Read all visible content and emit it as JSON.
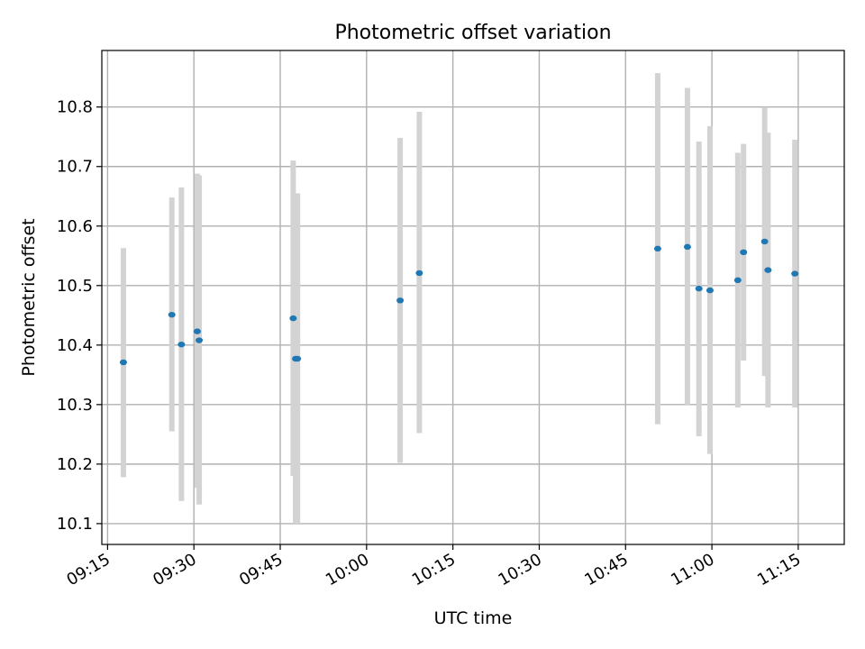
{
  "chart_data": {
    "type": "scatter",
    "title": "Photometric offset variation",
    "xlabel": "UTC time",
    "ylabel": "Photometric offset",
    "x_axis": {
      "type": "time",
      "domain": [
        "09:14",
        "11:23"
      ],
      "ticks": [
        "09:15",
        "09:30",
        "09:45",
        "10:00",
        "10:15",
        "10:30",
        "10:45",
        "11:00",
        "11:15"
      ]
    },
    "y_axis": {
      "range": [
        10.065,
        10.895
      ],
      "ticks": [
        "10.1",
        "10.2",
        "10.3",
        "10.4",
        "10.5",
        "10.6",
        "10.7",
        "10.8"
      ]
    },
    "grid": true,
    "colors": {
      "marker": "#1f77b4",
      "errorbar": "#d3d3d3",
      "grid": "#b0b0b0"
    },
    "points": [
      {
        "x": "09:17:45",
        "y": 10.371,
        "err_low": 10.178,
        "err_high": 10.563
      },
      {
        "x": "09:26:10",
        "y": 10.451,
        "err_low": 10.255,
        "err_high": 10.648
      },
      {
        "x": "09:27:50",
        "y": 10.401,
        "err_low": 10.138,
        "err_high": 10.665
      },
      {
        "x": "09:30:35",
        "y": 10.423,
        "err_low": 10.16,
        "err_high": 10.688
      },
      {
        "x": "09:30:55",
        "y": 10.408,
        "err_low": 10.132,
        "err_high": 10.685
      },
      {
        "x": "09:47:15",
        "y": 10.445,
        "err_low": 10.18,
        "err_high": 10.71
      },
      {
        "x": "09:47:40",
        "y": 10.377,
        "err_low": 10.1,
        "err_high": 10.655
      },
      {
        "x": "09:48:00",
        "y": 10.377,
        "err_low": 10.1,
        "err_high": 10.655
      },
      {
        "x": "10:05:50",
        "y": 10.475,
        "err_low": 10.202,
        "err_high": 10.748
      },
      {
        "x": "10:09:10",
        "y": 10.521,
        "err_low": 10.252,
        "err_high": 10.792
      },
      {
        "x": "10:50:35",
        "y": 10.562,
        "err_low": 10.267,
        "err_high": 10.857
      },
      {
        "x": "10:55:45",
        "y": 10.565,
        "err_low": 10.3,
        "err_high": 10.832
      },
      {
        "x": "10:57:45",
        "y": 10.495,
        "err_low": 10.247,
        "err_high": 10.742
      },
      {
        "x": "10:59:40",
        "y": 10.492,
        "err_low": 10.217,
        "err_high": 10.768
      },
      {
        "x": "11:04:30",
        "y": 10.509,
        "err_low": 10.295,
        "err_high": 10.723
      },
      {
        "x": "11:05:30",
        "y": 10.556,
        "err_low": 10.374,
        "err_high": 10.738
      },
      {
        "x": "11:09:10",
        "y": 10.574,
        "err_low": 10.348,
        "err_high": 10.8
      },
      {
        "x": "11:09:45",
        "y": 10.526,
        "err_low": 10.295,
        "err_high": 10.757
      },
      {
        "x": "11:14:25",
        "y": 10.52,
        "err_low": 10.295,
        "err_high": 10.745
      }
    ]
  }
}
